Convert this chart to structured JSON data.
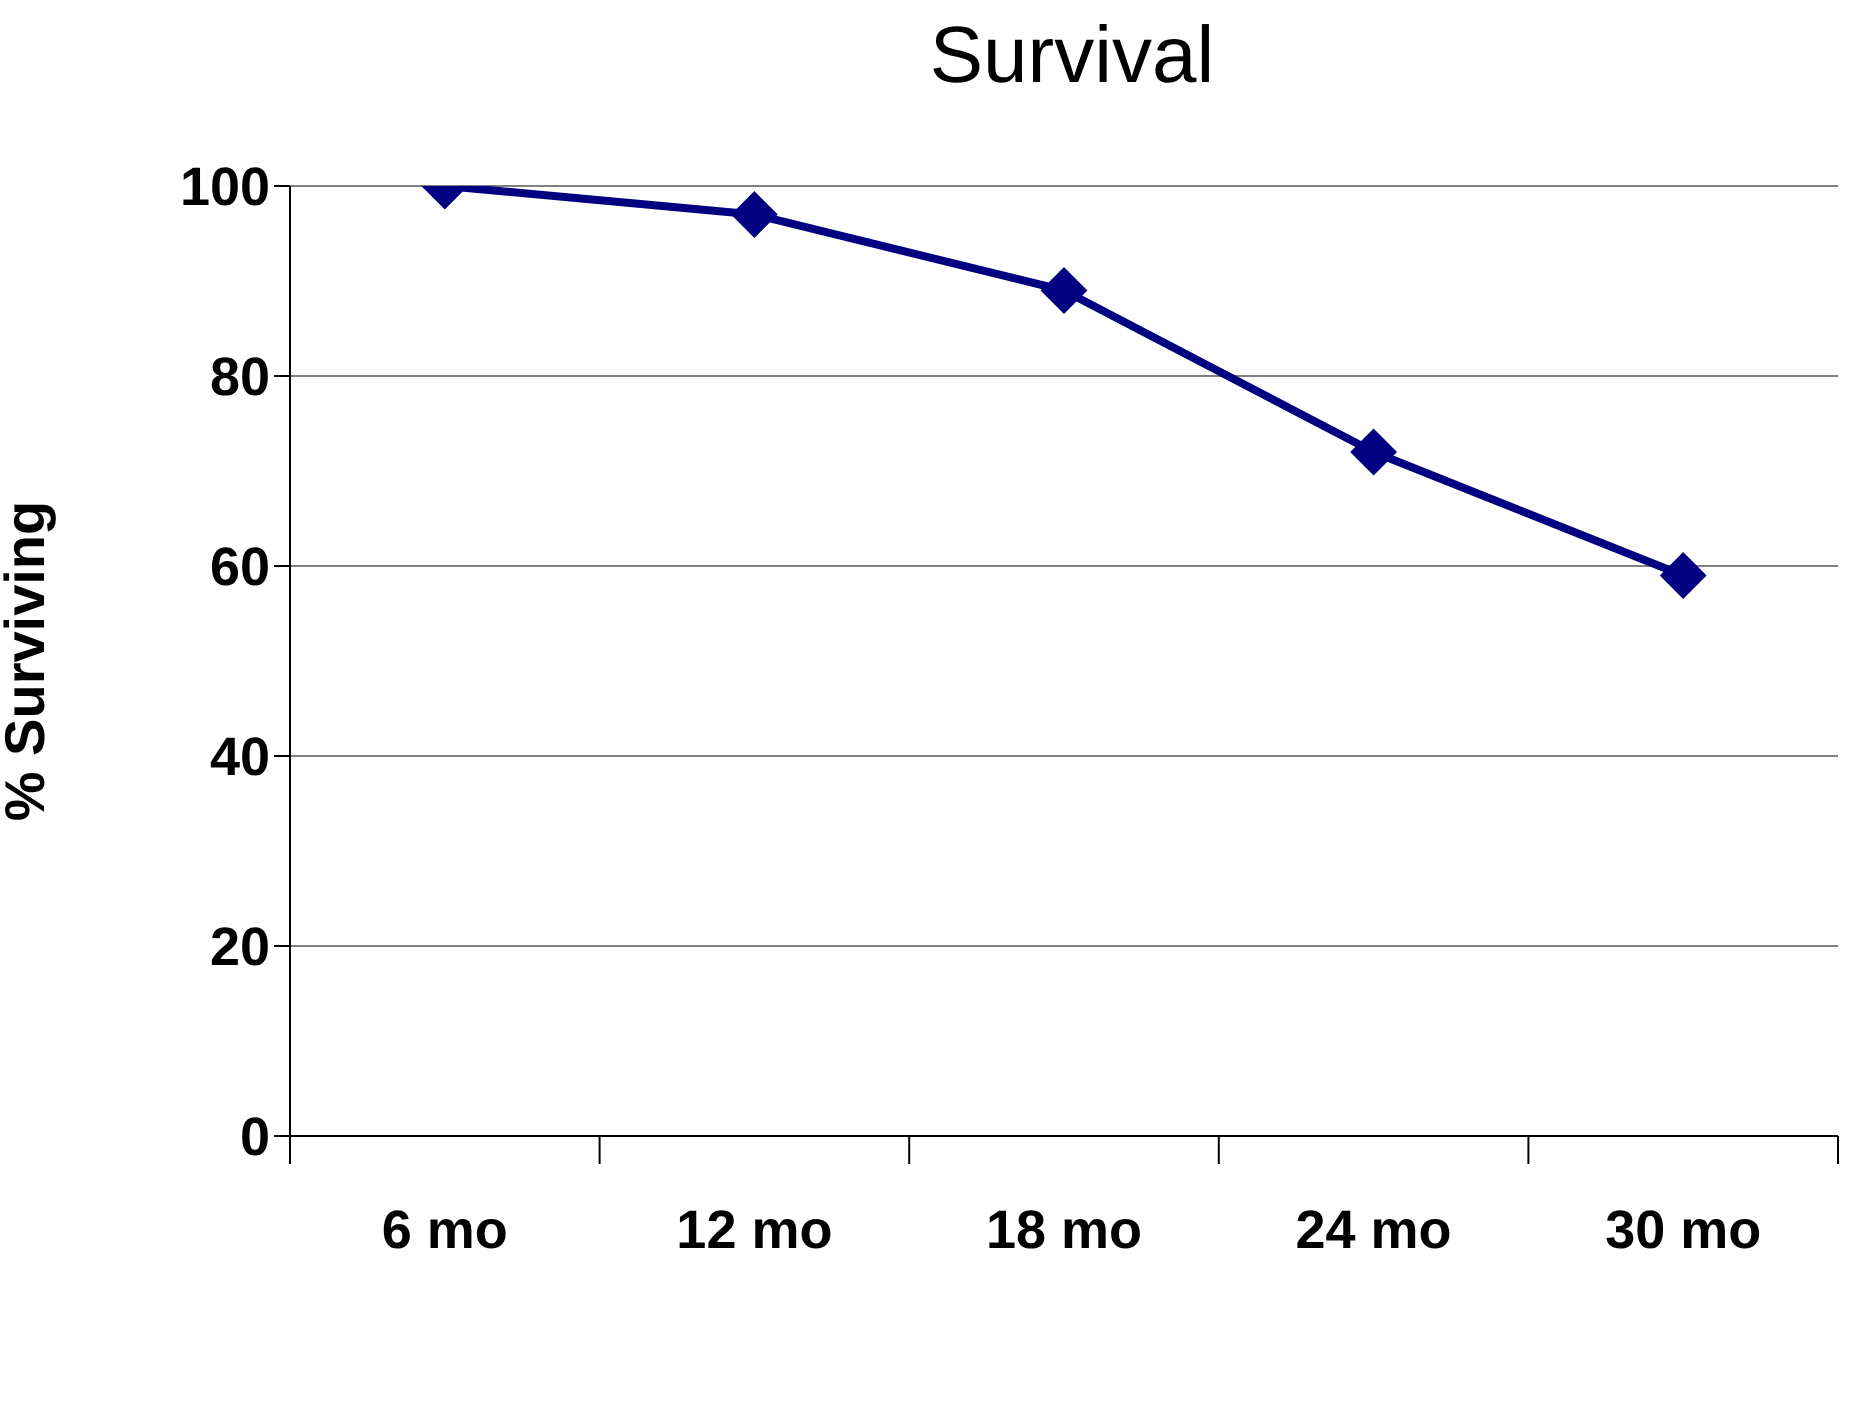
{
  "chart_data": {
    "type": "line",
    "title": "Survival",
    "ylabel": "% Surviving",
    "categories": [
      "6 mo",
      "12 mo",
      "18 mo",
      "24 mo",
      "30 mo"
    ],
    "series": [
      {
        "color": "#000080",
        "values": [
          100,
          97,
          89,
          72,
          59
        ]
      }
    ],
    "ylim": [
      0,
      100
    ],
    "yticks": [
      0,
      20,
      40,
      60,
      80,
      100
    ],
    "grid": "y",
    "legend": false,
    "marker": "diamond",
    "line_style": "solid"
  }
}
